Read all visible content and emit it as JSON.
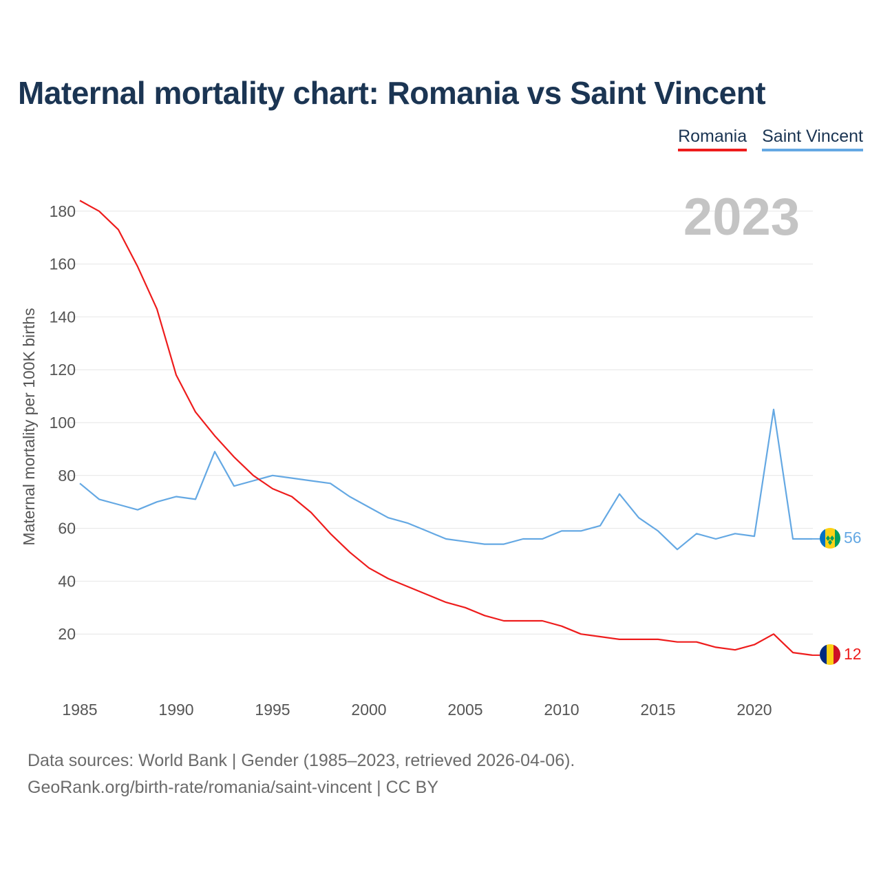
{
  "chart_data": {
    "type": "line",
    "title": "Maternal mortality chart: Romania vs Saint Vincent",
    "ylabel": "Maternal mortality per 100K births",
    "xlabel": "",
    "year_watermark": "2023",
    "xlim": [
      1985,
      2023
    ],
    "ylim": [
      0,
      190
    ],
    "x_ticks": [
      1985,
      1990,
      1995,
      2000,
      2005,
      2010,
      2015,
      2020
    ],
    "y_ticks": [
      20,
      40,
      60,
      80,
      100,
      120,
      140,
      160,
      180
    ],
    "x": [
      1985,
      1986,
      1987,
      1988,
      1989,
      1990,
      1991,
      1992,
      1993,
      1994,
      1995,
      1996,
      1997,
      1998,
      1999,
      2000,
      2001,
      2002,
      2003,
      2004,
      2005,
      2006,
      2007,
      2008,
      2009,
      2010,
      2011,
      2012,
      2013,
      2014,
      2015,
      2016,
      2017,
      2018,
      2019,
      2020,
      2021,
      2022,
      2023
    ],
    "series": [
      {
        "name": "Romania",
        "color": "#ee1c1c",
        "end_label": "12",
        "values": [
          184,
          180,
          173,
          159,
          143,
          118,
          104,
          95,
          87,
          80,
          75,
          72,
          66,
          58,
          51,
          45,
          41,
          38,
          35,
          32,
          30,
          27,
          25,
          25,
          25,
          23,
          20,
          19,
          18,
          18,
          18,
          17,
          17,
          15,
          14,
          16,
          20,
          13,
          12
        ]
      },
      {
        "name": "Saint Vincent",
        "color": "#64a8e3",
        "end_label": "56",
        "values": [
          77,
          71,
          69,
          67,
          70,
          72,
          71,
          89,
          76,
          78,
          80,
          79,
          78,
          77,
          72,
          68,
          64,
          62,
          59,
          56,
          55,
          54,
          54,
          56,
          56,
          59,
          59,
          61,
          73,
          64,
          59,
          52,
          58,
          56,
          58,
          57,
          105,
          56,
          56
        ]
      }
    ],
    "legend": [
      "Romania",
      "Saint Vincent"
    ],
    "legend_position": "top-right"
  },
  "footer": {
    "line1": "Data sources: World Bank | Gender (1985–2023, retrieved 2026-04-06).",
    "line2": "GeoRank.org/birth-rate/romania/saint-vincent | CC BY"
  }
}
